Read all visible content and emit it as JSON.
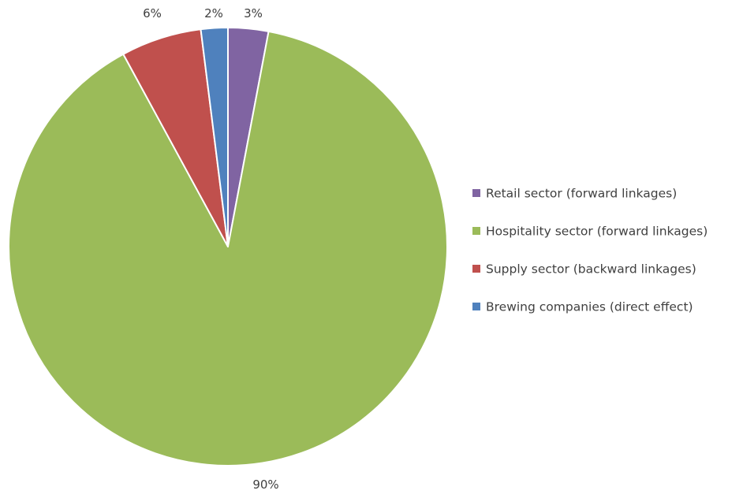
{
  "chart_data": {
    "type": "pie",
    "title": "",
    "legend_position": "right",
    "slices": [
      {
        "name": "Retail sector (forward linkages)",
        "value": 3,
        "label": "3%",
        "color": "#8064A2"
      },
      {
        "name": "Hospitality sector (forward linkages)",
        "value": 90,
        "label": "90%",
        "color": "#9BBB59"
      },
      {
        "name": "Supply sector (backward linkages)",
        "value": 6,
        "label": "6%",
        "color": "#C0504D"
      },
      {
        "name": "Brewing companies (direct effect)",
        "value": 2,
        "label": "2%",
        "color": "#4F81BD"
      }
    ]
  }
}
